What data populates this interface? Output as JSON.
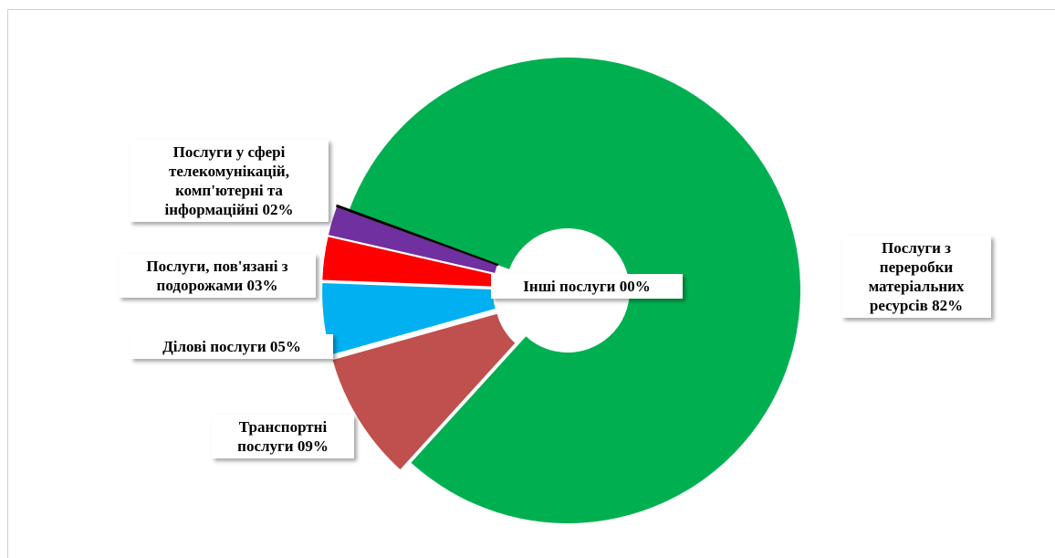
{
  "chart_data": {
    "type": "donut",
    "categories": [
      "Послуги з переробки матеріальних ресурсів",
      "Транспортні послуги",
      "Ділові послуги",
      "Послуги, пов'язані з подорожами",
      "Послуги у сфері телекомунікацій, комп'ютерні та інформаційні",
      "Інші послуги"
    ],
    "values": [
      82,
      9,
      5,
      3,
      2,
      0
    ],
    "value_labels": [
      "82%",
      "09%",
      "05%",
      "03%",
      "02%",
      "00%"
    ],
    "colors": [
      "#00b050",
      "#c0504d",
      "#00b0f0",
      "#ff0000",
      "#7030a0",
      "#000000"
    ]
  }
}
